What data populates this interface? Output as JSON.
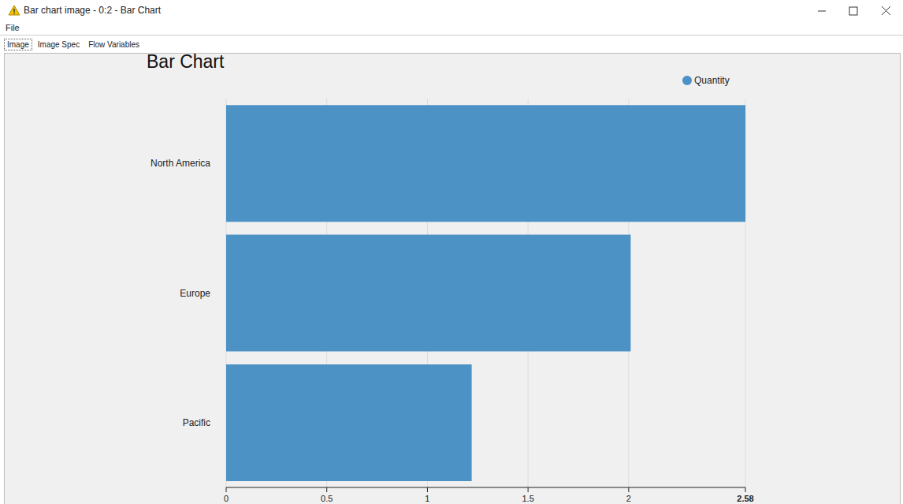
{
  "window": {
    "title": "Bar chart image - 0:2 - Bar Chart",
    "menu": [
      "File"
    ],
    "tabs": [
      "Image",
      "Image Spec",
      "Flow Variables"
    ]
  },
  "chart_data": {
    "type": "bar",
    "title": "Bar Chart",
    "orientation": "horizontal",
    "categories": [
      "North America",
      "Europe",
      "Pacific"
    ],
    "series": [
      {
        "name": "Quantity",
        "color": "#4c92c5",
        "values": [
          2.58,
          2.01,
          1.22
        ]
      }
    ],
    "xlim": [
      0,
      2.58
    ],
    "xticks": [
      0,
      0.5,
      1,
      1.5,
      2,
      2.58
    ],
    "grid": true,
    "legend": "top-right"
  }
}
